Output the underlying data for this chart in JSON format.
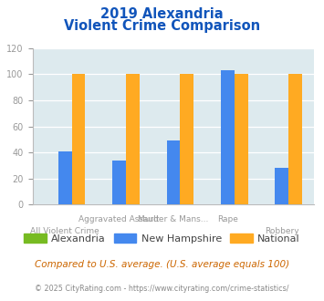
{
  "title_line1": "2019 Alexandria",
  "title_line2": "Violent Crime Comparison",
  "categories": [
    "All Violent Crime",
    "Aggravated Assault",
    "Murder & Mans...",
    "Rape",
    "Robbery"
  ],
  "series": {
    "Alexandria": [
      0,
      0,
      0,
      0,
      0
    ],
    "New Hampshire": [
      41,
      34,
      49,
      103,
      28
    ],
    "National": [
      100,
      100,
      100,
      100,
      100
    ]
  },
  "colors": {
    "Alexandria": "#77bb22",
    "New Hampshire": "#4488ee",
    "National": "#ffaa22"
  },
  "ylim": [
    0,
    120
  ],
  "yticks": [
    0,
    20,
    40,
    60,
    80,
    100,
    120
  ],
  "plot_bg": "#ddeaee",
  "title_color": "#1155bb",
  "axis_color": "#bbbbbb",
  "tick_color": "#999999",
  "legend_text_color": "#444444",
  "footnote1": "Compared to U.S. average. (U.S. average equals 100)",
  "footnote2": "© 2025 CityRating.com - https://www.cityrating.com/crime-statistics/",
  "footnote1_color": "#cc6600",
  "footnote2_color": "#888888",
  "cat_labels_row1": [
    "",
    "Aggravated Assault",
    "Murder & Mans...",
    "Rape",
    ""
  ],
  "cat_labels_row2": [
    "All Violent Crime",
    "",
    "",
    "",
    "Robbery"
  ]
}
